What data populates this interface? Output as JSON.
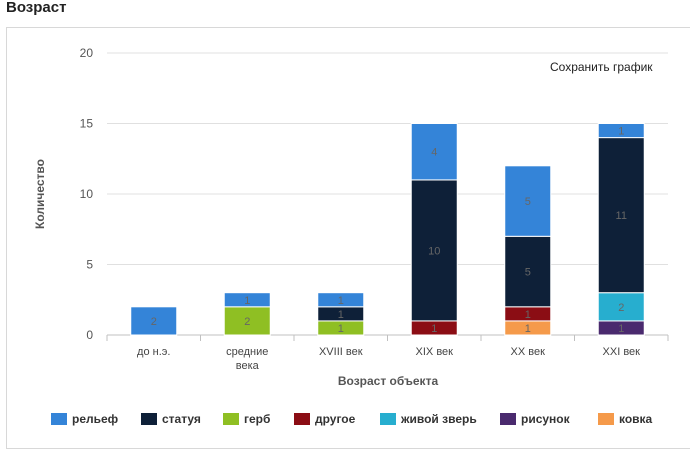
{
  "header": {
    "title": "Возраст"
  },
  "toolbar": {
    "save_label": "Сохранить график"
  },
  "chart_data": {
    "type": "bar",
    "stacked": true,
    "title": "",
    "xlabel": "Возраст объекта",
    "ylabel": "Количество",
    "ylim": [
      0,
      20
    ],
    "yticks": [
      0,
      5,
      10,
      15,
      20
    ],
    "grid": true,
    "legend_position": "bottom",
    "categories": [
      [
        "до н.э."
      ],
      [
        "средние",
        "века"
      ],
      [
        "XVIII век"
      ],
      [
        "XIX век"
      ],
      [
        "XX век"
      ],
      [
        "XXI век"
      ]
    ],
    "series": [
      {
        "name": "ковка",
        "color": "#f59a4a",
        "values": [
          0,
          0,
          0,
          0,
          1,
          0
        ]
      },
      {
        "name": "рисунок",
        "color": "#4a2a6e",
        "values": [
          0,
          0,
          0,
          0,
          0,
          1
        ]
      },
      {
        "name": "живой зверь",
        "color": "#27aecf",
        "values": [
          0,
          0,
          0,
          0,
          0,
          2
        ]
      },
      {
        "name": "другое",
        "color": "#8b0d14",
        "values": [
          0,
          0,
          0,
          1,
          1,
          0
        ]
      },
      {
        "name": "герб",
        "color": "#8fbf23",
        "values": [
          0,
          2,
          1,
          0,
          0,
          0
        ]
      },
      {
        "name": "статуя",
        "color": "#0e2038",
        "values": [
          0,
          0,
          1,
          10,
          5,
          11
        ]
      },
      {
        "name": "рельеф",
        "color": "#3484d8",
        "values": [
          2,
          1,
          1,
          4,
          5,
          1
        ]
      }
    ],
    "legend_order": [
      "рельеф",
      "статуя",
      "герб",
      "другое",
      "живой зверь",
      "рисунок",
      "ковка"
    ]
  }
}
